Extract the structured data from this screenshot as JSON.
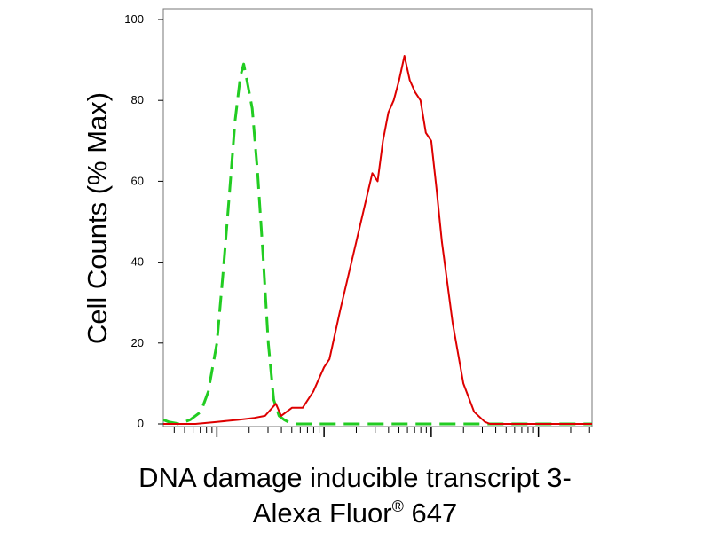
{
  "chart_data": {
    "type": "line",
    "title": "",
    "ylabel": "Cell Counts (% Max)",
    "xlabel_line1": "DNA damage inducible transcript 3-",
    "xlabel_line2_text": "Alexa Fluor",
    "xlabel_line2_symbol": "®",
    "xlabel_line2_suffix": " 647",
    "xscale": "log",
    "xlim": [
      -0.5,
      3.5
    ],
    "ylim": [
      0,
      100
    ],
    "yticks": [
      "0",
      "20",
      "40",
      "60",
      "80",
      "100"
    ],
    "x_tick_labels_shown": false,
    "grid": false,
    "legend": "none",
    "series": [
      {
        "color": "#22cc22",
        "style": "dashed",
        "x": [
          -0.5,
          -0.45,
          -0.35,
          -0.25,
          -0.15,
          -0.08,
          0.0,
          0.06,
          0.12,
          0.17,
          0.22,
          0.25,
          0.28,
          0.33,
          0.38,
          0.43,
          0.48,
          0.53,
          0.58,
          0.63,
          0.7,
          0.8,
          1.0,
          1.5,
          2.0,
          2.5,
          3.0,
          3.5
        ],
        "y": [
          1,
          0.5,
          0,
          1,
          3,
          8,
          20,
          38,
          58,
          75,
          86,
          89,
          85,
          78,
          62,
          42,
          20,
          6,
          2,
          1,
          0,
          0,
          0,
          0,
          0,
          0,
          0,
          0
        ]
      },
      {
        "color": "#dd0000",
        "style": "solid",
        "x": [
          -0.5,
          -0.2,
          0.0,
          0.2,
          0.35,
          0.45,
          0.55,
          0.6,
          0.7,
          0.8,
          0.9,
          1.0,
          1.05,
          1.15,
          1.3,
          1.45,
          1.5,
          1.55,
          1.6,
          1.65,
          1.7,
          1.75,
          1.8,
          1.85,
          1.9,
          1.95,
          2.0,
          2.05,
          2.1,
          2.2,
          2.3,
          2.4,
          2.5,
          2.55,
          2.6,
          2.8,
          3.0,
          3.5
        ],
        "y": [
          0,
          0,
          0.5,
          1,
          1.5,
          2,
          5,
          2,
          4,
          4,
          8,
          14,
          16,
          28,
          45,
          62,
          60,
          70,
          77,
          80,
          85,
          91,
          85,
          82,
          80,
          72,
          70,
          58,
          45,
          25,
          10,
          3,
          0.5,
          0,
          0,
          0,
          0,
          0
        ]
      }
    ]
  }
}
